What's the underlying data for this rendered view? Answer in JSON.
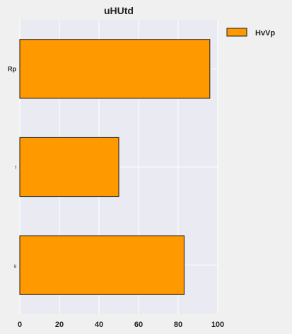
{
  "chart_data": {
    "type": "bar",
    "orientation": "horizontal",
    "title": "uHUtd",
    "categories": [
      "Rp",
      "f",
      "g"
    ],
    "series": [
      {
        "name": "HvVp",
        "values": [
          96,
          50,
          83
        ]
      }
    ],
    "xlim": [
      0,
      100
    ],
    "xticks": [
      0,
      20,
      40,
      60,
      80,
      100
    ],
    "xlabel": "",
    "ylabel": "",
    "grid": true,
    "legend_position": "top-right",
    "colors": {
      "bar_fill": "#ff9900",
      "bar_edge": "#1a1a1a",
      "plot_background": "#eaeaf2",
      "grid": "#ffffff"
    }
  }
}
